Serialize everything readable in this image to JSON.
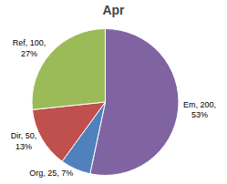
{
  "chart_data": {
    "type": "pie",
    "title": "Apr",
    "categories": [
      "Em",
      "Org",
      "Dir",
      "Ref"
    ],
    "values": [
      200,
      25,
      50,
      100
    ],
    "value_labels": [
      "Em, 200,\n53%",
      "Org, 25, 7%",
      "Dir, 50,\n13%",
      "Ref, 100,\n27%"
    ],
    "colors": [
      "#8064a2",
      "#4f81bd",
      "#c0504d",
      "#9bbb59"
    ]
  }
}
